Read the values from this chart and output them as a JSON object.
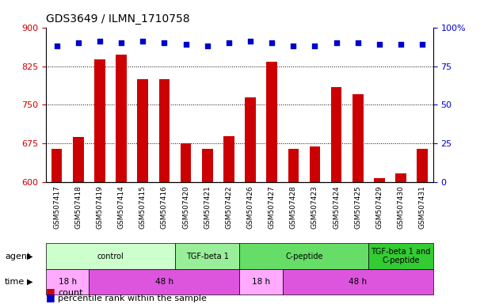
{
  "title": "GDS3649 / ILMN_1710758",
  "samples": [
    "GSM507417",
    "GSM507418",
    "GSM507419",
    "GSM507414",
    "GSM507415",
    "GSM507416",
    "GSM507420",
    "GSM507421",
    "GSM507422",
    "GSM507426",
    "GSM507427",
    "GSM507428",
    "GSM507423",
    "GSM507424",
    "GSM507425",
    "GSM507429",
    "GSM507430",
    "GSM507431"
  ],
  "counts": [
    665,
    688,
    838,
    848,
    800,
    800,
    675,
    665,
    690,
    765,
    833,
    665,
    670,
    785,
    770,
    608,
    618,
    665
  ],
  "percentile_ranks": [
    88,
    90,
    91,
    90,
    91,
    90,
    89,
    88,
    90,
    91,
    90,
    88,
    88,
    90,
    90,
    89,
    89,
    89
  ],
  "ylim_left": [
    600,
    900
  ],
  "ylim_right": [
    0,
    100
  ],
  "yticks_left": [
    600,
    675,
    750,
    825,
    900
  ],
  "yticks_right": [
    0,
    25,
    50,
    75,
    100
  ],
  "bar_color": "#cc0000",
  "scatter_color": "#0000cc",
  "agent_box_colors": [
    "#ccffcc",
    "#99ee99",
    "#66dd66",
    "#33cc33"
  ],
  "agent_groups": [
    {
      "label": "control",
      "start": 0,
      "end": 6
    },
    {
      "label": "TGF-beta 1",
      "start": 6,
      "end": 9
    },
    {
      "label": "C-peptide",
      "start": 9,
      "end": 15
    },
    {
      "label": "TGF-beta 1 and\nC-peptide",
      "start": 15,
      "end": 18
    }
  ],
  "time_box_colors_light": "#ffaaff",
  "time_box_colors_dark": "#dd55dd",
  "time_groups": [
    {
      "label": "18 h",
      "start": 0,
      "end": 2,
      "dark": false
    },
    {
      "label": "48 h",
      "start": 2,
      "end": 9,
      "dark": true
    },
    {
      "label": "18 h",
      "start": 9,
      "end": 11,
      "dark": false
    },
    {
      "label": "48 h",
      "start": 11,
      "end": 18,
      "dark": true
    }
  ],
  "agent_label": "agent",
  "time_label": "time",
  "legend_count_color": "#cc0000",
  "legend_pct_color": "#0000cc",
  "xtick_bg_color": "#d8d8d8",
  "grid_dotted_color": "#555555"
}
